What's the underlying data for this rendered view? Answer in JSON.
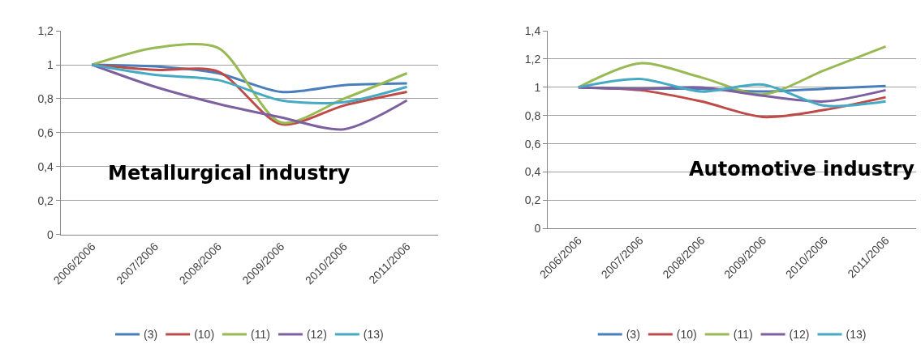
{
  "chart_data": [
    {
      "type": "line",
      "title": "Metallurgical industry",
      "categories": [
        "2006/2006",
        "2007/2006",
        "2008/2006",
        "2009/2006",
        "2010/2006",
        "2011/2006"
      ],
      "series": [
        {
          "name": "(3)",
          "color": "#4a7ebb",
          "values": [
            1,
            0.99,
            0.95,
            0.84,
            0.88,
            0.89
          ]
        },
        {
          "name": "(10)",
          "color": "#be4b48",
          "values": [
            1,
            0.97,
            0.96,
            0.65,
            0.76,
            0.84
          ]
        },
        {
          "name": "(11)",
          "color": "#98b954",
          "values": [
            1,
            1.1,
            1.1,
            0.66,
            0.8,
            0.95
          ]
        },
        {
          "name": "(12)",
          "color": "#7d60a0",
          "values": [
            1,
            0.87,
            0.77,
            0.69,
            0.62,
            0.79
          ]
        },
        {
          "name": "(13)",
          "color": "#46aac5",
          "values": [
            1,
            0.94,
            0.91,
            0.79,
            0.78,
            0.87
          ]
        }
      ],
      "ylim": [
        0,
        1.2
      ],
      "yticks": [
        0,
        {
          "value": 0.2,
          "label": "0,2"
        },
        {
          "value": 0.4,
          "label": "0,4"
        },
        {
          "value": 0.6,
          "label": "0,6"
        },
        {
          "value": 0.8,
          "label": "0,8"
        },
        1,
        {
          "value": 1.2,
          "label": "1,2"
        }
      ],
      "grid": "y",
      "legend": "bottom"
    },
    {
      "type": "line",
      "title": "Automotive industry",
      "categories": [
        "2006/2006",
        "2007/2006",
        "2008/2006",
        "2009/2006",
        "2010/2006",
        "2011/2006"
      ],
      "series": [
        {
          "name": "(3)",
          "color": "#4a7ebb",
          "values": [
            1,
            0.99,
            0.99,
            0.97,
            0.99,
            1.01
          ]
        },
        {
          "name": "(10)",
          "color": "#be4b48",
          "values": [
            1,
            0.98,
            0.9,
            0.79,
            0.84,
            0.93
          ]
        },
        {
          "name": "(11)",
          "color": "#98b954",
          "values": [
            1,
            1.17,
            1.07,
            0.95,
            1.12,
            1.29
          ]
        },
        {
          "name": "(12)",
          "color": "#7d60a0",
          "values": [
            1,
            0.99,
            1.0,
            0.94,
            0.9,
            0.98
          ]
        },
        {
          "name": "(13)",
          "color": "#46aac5",
          "values": [
            1,
            1.06,
            0.97,
            1.02,
            0.87,
            0.9
          ]
        }
      ],
      "ylim": [
        0,
        1.4
      ],
      "yticks": [
        0,
        {
          "value": 0.2,
          "label": "0,2"
        },
        {
          "value": 0.4,
          "label": "0,4"
        },
        {
          "value": 0.6,
          "label": "0,6"
        },
        {
          "value": 0.8,
          "label": "0,8"
        },
        1,
        {
          "value": 1.2,
          "label": "1,2"
        },
        {
          "value": 1.4,
          "label": "1,4"
        }
      ],
      "grid": "y",
      "legend": "bottom"
    }
  ]
}
